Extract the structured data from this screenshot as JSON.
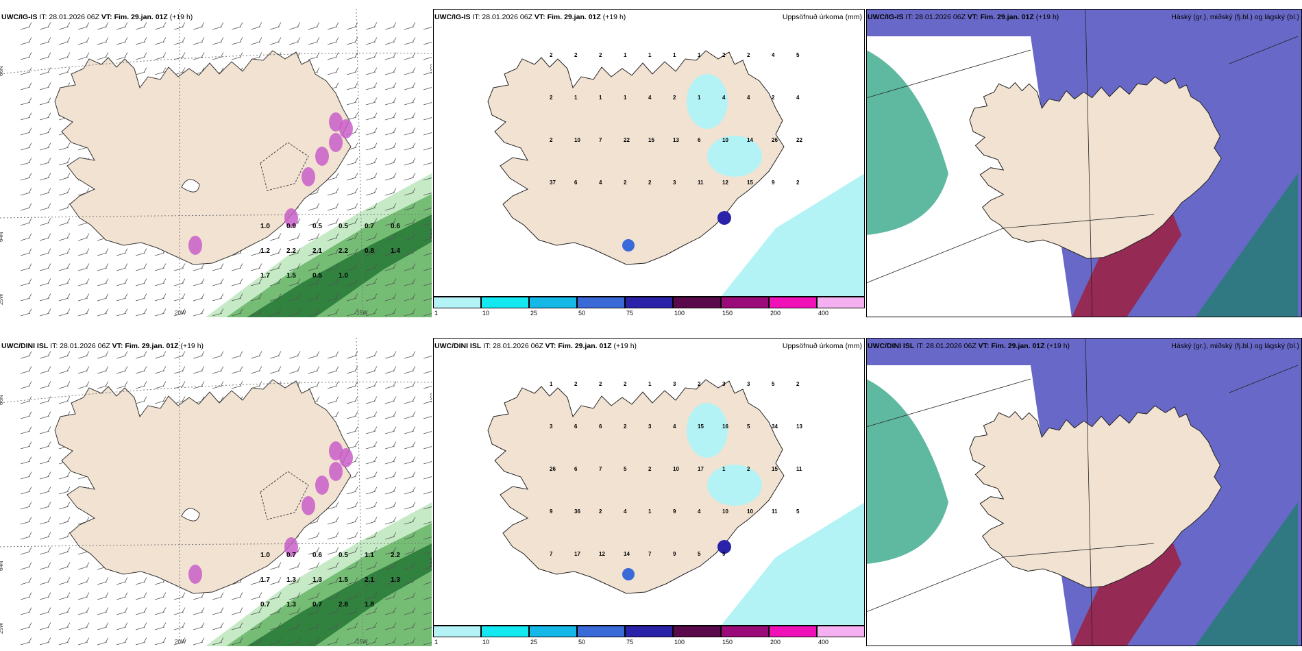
{
  "colors": {
    "land": "#f1e2d2",
    "sea": "#ffffff",
    "precip_light": "#b3f3f5",
    "cloud_high": "#6868c8",
    "cloud_mid": "#36a888",
    "cloud_low": "#9e2040",
    "green_dark": "#2a7a3a",
    "green_light": "#bfe8bf",
    "pink": "#c95fc9"
  },
  "panels": {
    "ig_wind": {
      "model": "UWC/IG-IS",
      "it_label": "IT: 28.01.2026 06Z",
      "vt_label": "VT: Fim. 29.jan. 01Z",
      "lead": "(+19 h)",
      "axes": {
        "lat66": "66N",
        "lat64": "64N",
        "lon25": "25W",
        "lon20": "20W",
        "lon15": "15W",
        "lat65r": "65N",
        "lat64r": "64N"
      },
      "labels": [
        "1.0",
        "0.9",
        "0.5",
        "0.5",
        "0.7",
        "0.6",
        "1.2",
        "2.2",
        "2.1",
        "2.2",
        "0.8",
        "1.4",
        "1.7",
        "1.5",
        "0.5",
        "1.0"
      ]
    },
    "ig_precip": {
      "model": "UWC/IG-IS",
      "it_label": "IT: 28.01.2026 06Z",
      "vt_label": "VT: Fim. 29.jan. 01Z",
      "lead": "(+19 h)",
      "right_title": "Uppsöfnuð úrkoma (mm)",
      "labels": [
        "2",
        "2",
        "2",
        "1",
        "1",
        "1",
        "1",
        "2",
        "2",
        "4",
        "5",
        "2",
        "1",
        "1",
        "1",
        "4",
        "2",
        "1",
        "4",
        "4",
        "2",
        "4",
        "2",
        "10",
        "7",
        "22",
        "15",
        "13",
        "6",
        "10",
        "14",
        "26",
        "22",
        "37",
        "6",
        "4",
        "2",
        "2",
        "3",
        "11",
        "12",
        "15",
        "9",
        "2"
      ]
    },
    "ig_cloud": {
      "model": "UWC/IG-IS",
      "it_label": "IT: 28.01.2026 06Z",
      "vt_label": "VT: Fim. 29.jan. 01Z",
      "lead": "(+19 h)",
      "right_title": "Háský (gr.), miðský (fj.bl.) og lágský (bl.)"
    },
    "dini_wind": {
      "model": "UWC/DINI ISL",
      "it_label": "IT: 28.01.2026 06Z",
      "vt_label": "VT: Fim. 29.jan. 01Z",
      "lead": "(+19 h)",
      "axes": {
        "lat66": "66N",
        "lat64": "64N",
        "lon25": "25W",
        "lon20": "20W",
        "lon15": "15W",
        "lat65r": "65N",
        "lat64r": "64N"
      },
      "labels": [
        "1.0",
        "0.7",
        "0.6",
        "0.5",
        "1.1",
        "2.2",
        "1.7",
        "1.3",
        "1.3",
        "1.5",
        "2.1",
        "1.3",
        "0.7",
        "1.3",
        "0.7",
        "2.8",
        "1.8"
      ]
    },
    "dini_precip": {
      "model": "UWC/DINI ISL",
      "it_label": "IT: 28.01.2026 06Z",
      "vt_label": "VT: Fim. 29.jan. 01Z",
      "lead": "(+19 h)",
      "right_title": "Uppsöfnuð úrkoma (mm)",
      "labels": [
        "1",
        "2",
        "2",
        "2",
        "1",
        "3",
        "2",
        "3",
        "3",
        "5",
        "2",
        "3",
        "6",
        "6",
        "2",
        "3",
        "4",
        "15",
        "16",
        "5",
        "34",
        "13",
        "26",
        "6",
        "7",
        "5",
        "2",
        "10",
        "17",
        "1",
        "2",
        "15",
        "11",
        "9",
        "36",
        "2",
        "4",
        "1",
        "9",
        "4",
        "10",
        "10",
        "11",
        "5",
        "7",
        "17",
        "12",
        "14",
        "7",
        "9",
        "5",
        "9"
      ]
    },
    "dini_cloud": {
      "model": "UWC/DINI ISL",
      "it_label": "IT: 28.01.2026 06Z",
      "vt_label": "VT: Fim. 29.jan. 01Z",
      "lead": "(+19 h)",
      "right_title": "Háský (gr.), miðský (fj.bl.) og lágský (bl.)"
    }
  },
  "colorbar": {
    "ticks": [
      "1",
      "10",
      "25",
      "50",
      "75",
      "100",
      "150",
      "200",
      "400"
    ],
    "colors": [
      "#b3f3f5",
      "#14e8f0",
      "#16b8e8",
      "#3a6ad8",
      "#2a22a8",
      "#5a0a4a",
      "#9a0a78",
      "#f010b8",
      "#f4b0f0"
    ]
  }
}
